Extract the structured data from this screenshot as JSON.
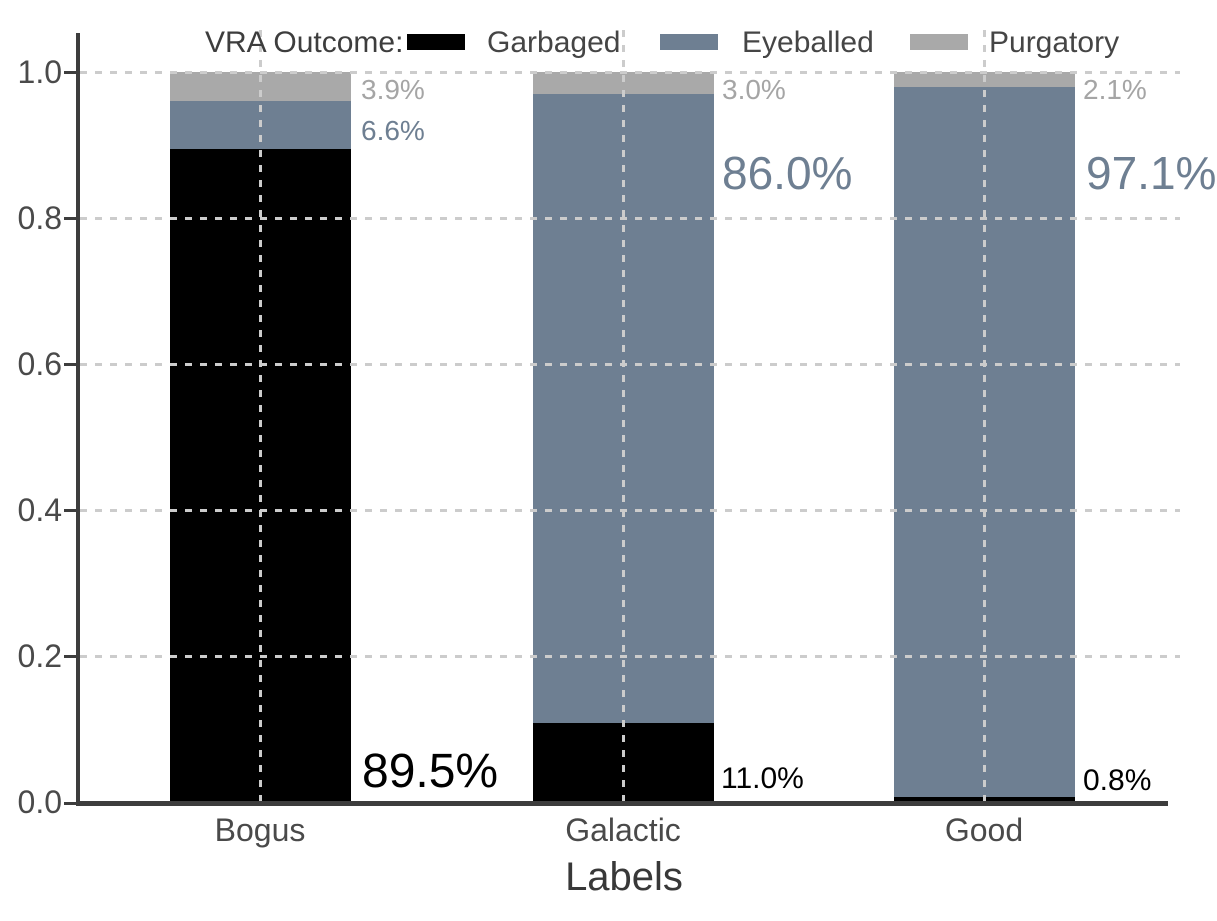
{
  "legend": {
    "title": "VRA Outcome:",
    "items": [
      {
        "label": "Garbaged",
        "color": "#000000"
      },
      {
        "label": "Eyeballed",
        "color": "#6e7f92"
      },
      {
        "label": "Purgatory",
        "color": "#a9a9a9"
      }
    ]
  },
  "axes": {
    "xlabel": "Labels",
    "x_ticks": [
      "Bogus",
      "Galactic",
      "Good"
    ],
    "y_ticks_desc": [
      "1.0",
      "0.8",
      "0.6",
      "0.4",
      "0.2",
      "0.0"
    ]
  },
  "colors": {
    "garbaged": "#000000",
    "eyeballed": "#6e7f92",
    "purgatory": "#a9a9a9",
    "axis": "#3d3d3d",
    "tick_label": "#4a4a4a",
    "grid": "#cccccc",
    "muted_label": "#a5a5a5"
  },
  "annotations": {
    "bogus": {
      "garbaged": "89.5%",
      "eyeballed": "6.6%",
      "purgatory": "3.9%"
    },
    "galactic": {
      "garbaged": "11.0%",
      "eyeballed": "86.0%",
      "purgatory": "3.0%"
    },
    "good": {
      "garbaged": "0.8%",
      "eyeballed": "97.1%",
      "purgatory": "2.1%"
    }
  },
  "chart_data": {
    "type": "bar",
    "stacked": true,
    "title": "VRA Outcome:",
    "xlabel": "Labels",
    "ylabel": "",
    "ylim": [
      0.0,
      1.0
    ],
    "y_tick_step": 0.2,
    "grid": true,
    "legend_position": "top",
    "categories": [
      "Bogus",
      "Galactic",
      "Good"
    ],
    "series": [
      {
        "name": "Garbaged",
        "color": "#000000",
        "values": [
          0.895,
          0.11,
          0.008
        ],
        "value_labels": [
          "89.5%",
          "11.0%",
          "0.8%"
        ]
      },
      {
        "name": "Eyeballed",
        "color": "#6e7f92",
        "values": [
          0.066,
          0.86,
          0.971
        ],
        "value_labels": [
          "6.6%",
          "86.0%",
          "97.1%"
        ]
      },
      {
        "name": "Purgatory",
        "color": "#a9a9a9",
        "values": [
          0.039,
          0.03,
          0.021
        ],
        "value_labels": [
          "3.9%",
          "3.0%",
          "2.1%"
        ]
      }
    ]
  }
}
